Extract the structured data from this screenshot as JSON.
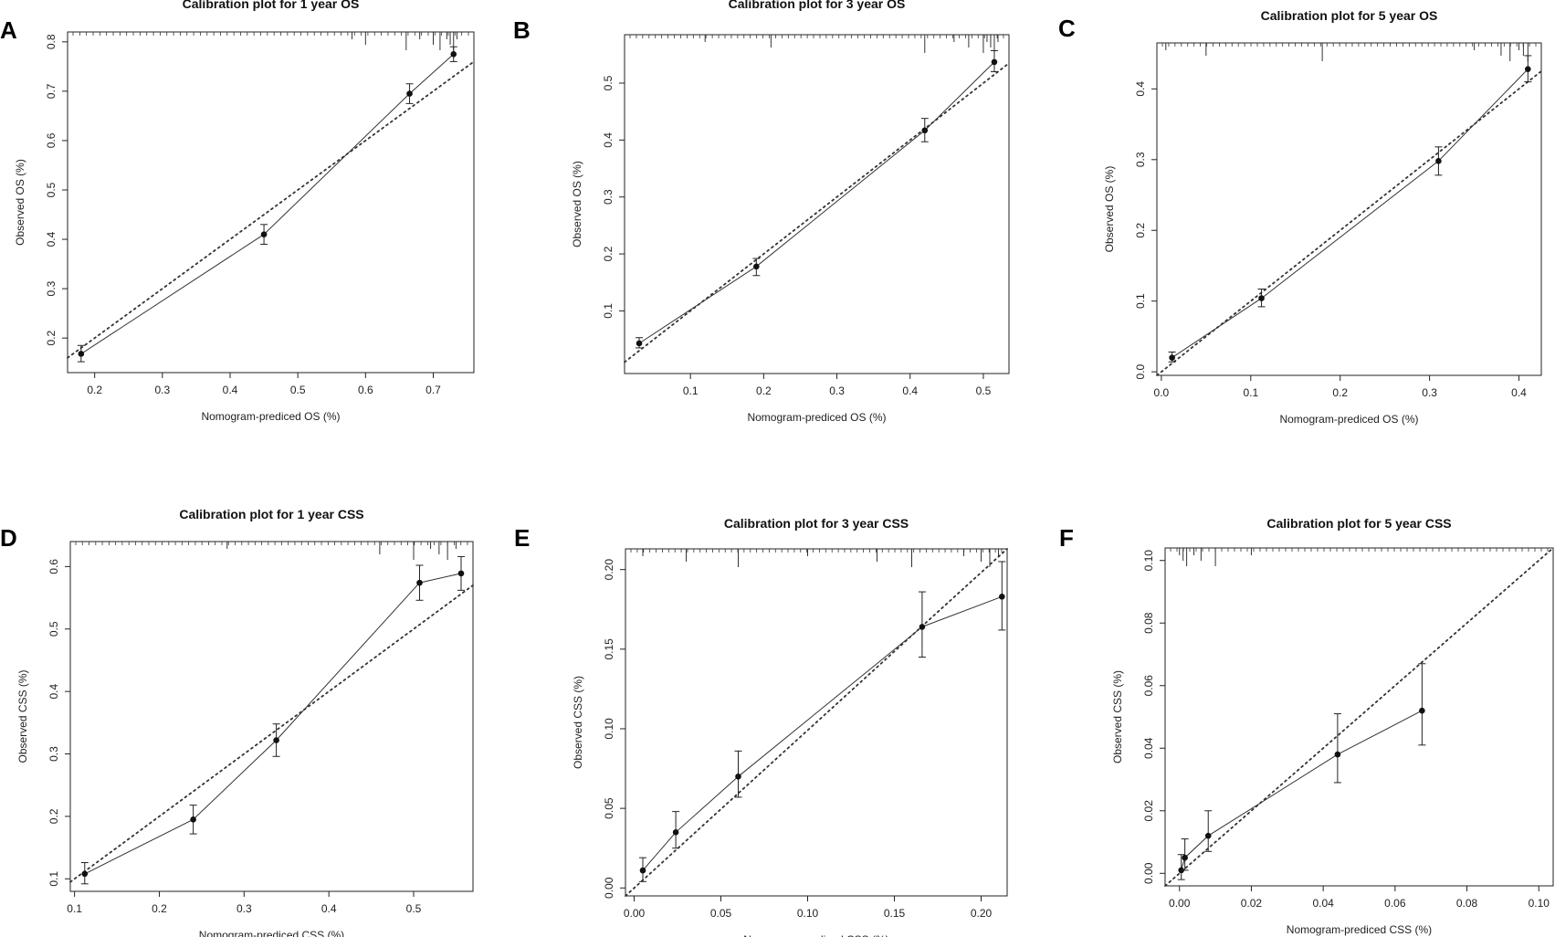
{
  "chart_data": [
    {
      "panel": "A",
      "type": "line",
      "title": "Calibration plot for 1 year OS",
      "xlabel": "Nomogram-prediced OS (%)",
      "ylabel": "Observed OS (%)",
      "xlim": [
        0.16,
        0.76
      ],
      "ylim": [
        0.13,
        0.82
      ],
      "xticks": [
        "0.2",
        "0.3",
        "0.4",
        "0.5",
        "0.6",
        "0.7"
      ],
      "yticks": [
        "0.2",
        "0.3",
        "0.4",
        "0.5",
        "0.6",
        "0.7",
        "0.8"
      ],
      "series": [
        {
          "name": "observed",
          "x": [
            0.18,
            0.45,
            0.665,
            0.73
          ],
          "y": [
            0.168,
            0.41,
            0.695,
            0.775
          ],
          "err_low": [
            0.152,
            0.39,
            0.675,
            0.76
          ],
          "err_high": [
            0.185,
            0.43,
            0.715,
            0.79
          ]
        },
        {
          "name": "ideal",
          "style": "dotted",
          "x": [
            0.16,
            0.76
          ],
          "y": [
            0.16,
            0.76
          ]
        }
      ],
      "rug": [
        0.58,
        0.6,
        0.66,
        0.68,
        0.7,
        0.71,
        0.72,
        0.725,
        0.73,
        0.735
      ]
    },
    {
      "panel": "B",
      "type": "line",
      "title": "Calibration plot for 3 year OS",
      "xlabel": "Nomogram-prediced OS (%)",
      "ylabel": "Observed OS (%)",
      "xlim": [
        0.01,
        0.535
      ],
      "ylim": [
        -0.01,
        0.585
      ],
      "xticks": [
        "0.1",
        "0.2",
        "0.3",
        "0.4",
        "0.5"
      ],
      "yticks": [
        "0.1",
        "0.2",
        "0.3",
        "0.4",
        "0.5"
      ],
      "series": [
        {
          "name": "observed",
          "x": [
            0.03,
            0.19,
            0.42,
            0.515
          ],
          "y": [
            0.043,
            0.178,
            0.417,
            0.537
          ],
          "err_low": [
            0.035,
            0.162,
            0.397,
            0.52
          ],
          "err_high": [
            0.053,
            0.192,
            0.438,
            0.557
          ]
        },
        {
          "name": "ideal",
          "style": "dotted",
          "x": [
            0.01,
            0.535
          ],
          "y": [
            0.01,
            0.535
          ]
        }
      ],
      "rug": [
        0.12,
        0.21,
        0.42,
        0.46,
        0.48,
        0.5,
        0.505,
        0.51,
        0.515,
        0.52
      ]
    },
    {
      "panel": "C",
      "type": "line",
      "title": "Calibration plot for 5 year OS",
      "xlabel": "Nomogram-prediced OS (%)",
      "ylabel": "Observed OS (%)",
      "xlim": [
        -0.005,
        0.425
      ],
      "ylim": [
        -0.005,
        0.465
      ],
      "xticks": [
        "0.0",
        "0.1",
        "0.2",
        "0.3",
        "0.4"
      ],
      "yticks": [
        "0.0",
        "0.1",
        "0.2",
        "0.3",
        "0.4"
      ],
      "series": [
        {
          "name": "observed",
          "x": [
            0.012,
            0.112,
            0.31,
            0.41
          ],
          "y": [
            0.02,
            0.104,
            0.298,
            0.428
          ],
          "err_low": [
            0.014,
            0.092,
            0.278,
            0.41
          ],
          "err_high": [
            0.028,
            0.117,
            0.318,
            0.447
          ]
        },
        {
          "name": "ideal",
          "style": "dotted",
          "x": [
            -0.005,
            0.425
          ],
          "y": [
            -0.005,
            0.425
          ]
        }
      ],
      "rug": [
        0.005,
        0.05,
        0.18,
        0.35,
        0.38,
        0.39,
        0.4,
        0.405,
        0.41
      ]
    },
    {
      "panel": "D",
      "type": "line",
      "title": "Calibration plot for 1 year CSS",
      "xlabel": "Nomogram-prediced CSS (%)",
      "ylabel": "Observed CSS (%)",
      "xlim": [
        0.095,
        0.57
      ],
      "ylim": [
        0.08,
        0.64
      ],
      "xticks": [
        "0.1",
        "0.2",
        "0.3",
        "0.4",
        "0.5"
      ],
      "yticks": [
        "0.1",
        "0.2",
        "0.3",
        "0.4",
        "0.5",
        "0.6"
      ],
      "series": [
        {
          "name": "observed",
          "x": [
            0.112,
            0.24,
            0.338,
            0.507,
            0.556
          ],
          "y": [
            0.108,
            0.195,
            0.322,
            0.574,
            0.589
          ],
          "err_low": [
            0.092,
            0.172,
            0.296,
            0.546,
            0.562
          ],
          "err_high": [
            0.126,
            0.218,
            0.348,
            0.602,
            0.616
          ]
        },
        {
          "name": "ideal",
          "style": "dotted",
          "x": [
            0.095,
            0.57
          ],
          "y": [
            0.095,
            0.57
          ]
        }
      ],
      "rug": [
        0.28,
        0.46,
        0.5,
        0.52,
        0.53,
        0.54,
        0.55
      ]
    },
    {
      "panel": "E",
      "type": "line",
      "title": "Calibration plot for 3 year CSS",
      "xlabel": "Nomogram-prediced CSS (%)",
      "ylabel": "Observed CSS (%)",
      "xlim": [
        -0.005,
        0.215
      ],
      "ylim": [
        -0.005,
        0.213
      ],
      "xticks": [
        "0.00",
        "0.05",
        "0.10",
        "0.15",
        "0.20"
      ],
      "yticks": [
        "0.00",
        "0.05",
        "0.10",
        "0.15",
        "0.20"
      ],
      "series": [
        {
          "name": "observed",
          "x": [
            0.005,
            0.024,
            0.06,
            0.166,
            0.212
          ],
          "y": [
            0.011,
            0.035,
            0.07,
            0.164,
            0.183
          ],
          "err_low": [
            0.004,
            0.025,
            0.057,
            0.145,
            0.162
          ],
          "err_high": [
            0.019,
            0.048,
            0.086,
            0.186,
            0.205
          ]
        },
        {
          "name": "ideal",
          "style": "dotted",
          "x": [
            -0.005,
            0.215
          ],
          "y": [
            -0.005,
            0.215
          ]
        }
      ],
      "rug": [
        0.005,
        0.03,
        0.06,
        0.1,
        0.14,
        0.16,
        0.19,
        0.2,
        0.205,
        0.21
      ]
    },
    {
      "panel": "F",
      "type": "line",
      "title": "Calibration plot for 5 year CSS",
      "xlabel": "Nomogram-prediced CSS (%)",
      "ylabel": "Observed CSS (%)",
      "xlim": [
        -0.004,
        0.104
      ],
      "ylim": [
        -0.004,
        0.104
      ],
      "xticks": [
        "0.00",
        "0.02",
        "0.04",
        "0.06",
        "0.08",
        "0.10"
      ],
      "yticks": [
        "0.00",
        "0.02",
        "0.04",
        "0.06",
        "0.08",
        "0.10"
      ],
      "series": [
        {
          "name": "observed",
          "x": [
            0.0005,
            0.0015,
            0.008,
            0.044,
            0.0675
          ],
          "y": [
            0.001,
            0.005,
            0.012,
            0.038,
            0.052
          ],
          "err_low": [
            -0.002,
            0.001,
            0.007,
            0.029,
            0.041
          ],
          "err_high": [
            0.006,
            0.011,
            0.02,
            0.051,
            0.067
          ]
        },
        {
          "name": "ideal",
          "style": "dotted",
          "x": [
            -0.004,
            0.104
          ],
          "y": [
            -0.004,
            0.104
          ]
        }
      ],
      "rug": [
        0.0,
        0.001,
        0.002,
        0.004,
        0.006,
        0.01,
        0.02
      ]
    }
  ]
}
